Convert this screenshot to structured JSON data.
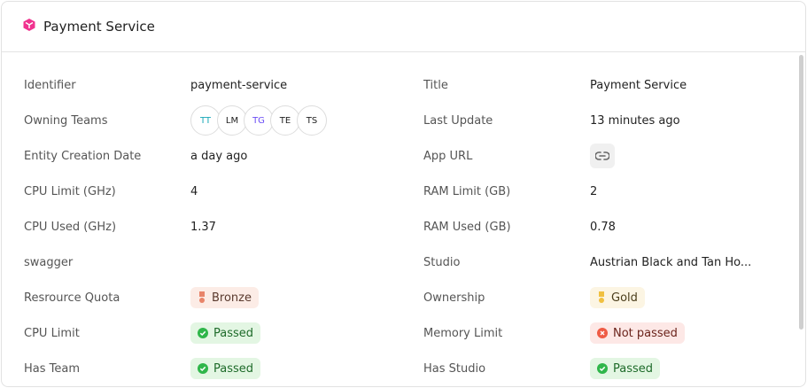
{
  "header": {
    "title": "Payment Service",
    "icon": "cube-icon",
    "icon_color": "#f0338f"
  },
  "left": [
    {
      "label": "Identifier",
      "value": "payment-service"
    },
    {
      "label": "Owning Teams",
      "teams": [
        {
          "initials": "TT",
          "color": "#1aa8b8"
        },
        {
          "initials": "LM",
          "color": "#222222"
        },
        {
          "initials": "TG",
          "color": "#6a4cf5"
        },
        {
          "initials": "TE",
          "color": "#222222"
        },
        {
          "initials": "TS",
          "color": "#222222"
        }
      ]
    },
    {
      "label": "Entity Creation Date",
      "value": "a day ago"
    },
    {
      "label": "CPU Limit (GHz)",
      "value": "4"
    },
    {
      "label": "CPU Used (GHz)",
      "value": "1.37"
    },
    {
      "label": "swagger",
      "value": ""
    },
    {
      "label": "Resrource Quota",
      "badge": {
        "text": "Bronze",
        "kind": "bronze"
      }
    },
    {
      "label": "CPU Limit",
      "badge": {
        "text": "Passed",
        "kind": "passed"
      }
    },
    {
      "label": "Has Team",
      "badge": {
        "text": "Passed",
        "kind": "passed"
      }
    }
  ],
  "right": [
    {
      "label": "Title",
      "value": "Payment Service"
    },
    {
      "label": "Last Update",
      "value": "13 minutes ago"
    },
    {
      "label": "App URL",
      "icon": "link-icon"
    },
    {
      "label": "RAM Limit (GB)",
      "value": "2"
    },
    {
      "label": "RAM Used (GB)",
      "value": "0.78"
    },
    {
      "label": "Studio",
      "value": "Austrian Black and Tan Ho..."
    },
    {
      "label": "Ownership",
      "badge": {
        "text": "Gold",
        "kind": "gold"
      }
    },
    {
      "label": "Memory Limit",
      "badge": {
        "text": "Not passed",
        "kind": "failed"
      }
    },
    {
      "label": "Has Studio",
      "badge": {
        "text": "Passed",
        "kind": "passed"
      }
    }
  ],
  "colors": {
    "passed_bg": "#e3f6e3",
    "passed_fg": "#1e6b2a",
    "failed_bg": "#fde8e6",
    "failed_fg": "#6b231b",
    "bronze_bg": "#fcece6",
    "gold_bg": "#fcf5e3"
  }
}
